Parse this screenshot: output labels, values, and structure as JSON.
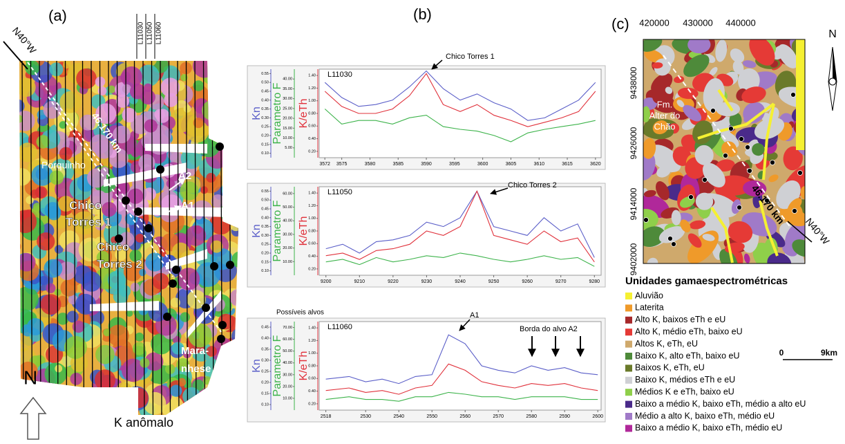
{
  "panel_a": {
    "label": "(a)",
    "direction": "N40°W",
    "lines": [
      "L11030",
      "L11050",
      "L11060"
    ],
    "distance": "46.170 km",
    "places": [
      "Porquinho",
      "A2",
      "A1",
      "Chico",
      "Torres 1",
      "Chico",
      "Torres 2",
      "Mara-",
      "nhese"
    ],
    "caption": "K anômalo",
    "north": "N"
  },
  "panel_b": {
    "label": "(b)"
  },
  "chart_data": [
    {
      "type": "line",
      "title": "L11030",
      "annotations": [
        "Chico Torres 1"
      ],
      "x": [
        3572,
        3575,
        3578,
        3581,
        3584,
        3587,
        3590,
        3593,
        3596,
        3599,
        3602,
        3605,
        3608,
        3611,
        3614,
        3617,
        3620
      ],
      "xlim": [
        3571,
        3621
      ],
      "xticks": [
        3572,
        3575,
        3580,
        3585,
        3590,
        3595,
        3600,
        3605,
        3610,
        3615,
        3620
      ],
      "ylim": [
        0.1,
        1.5
      ],
      "yticks": [
        {
          "value": 0.2,
          "label": "0.20"
        },
        {
          "value": 0.4,
          "label": "0.40"
        },
        {
          "value": 0.6,
          "label": "0.60"
        },
        {
          "value": 0.8,
          "label": "0.80"
        },
        {
          "value": 1,
          "label": "1.00"
        },
        {
          "value": 1.2,
          "label": "1.20"
        },
        {
          "value": 1.4,
          "label": "1.40"
        }
      ],
      "y2lim": [
        0,
        45
      ],
      "y2ticks": [
        {
          "value": 5,
          "label": "5.00"
        },
        {
          "value": 10,
          "label": "10.00"
        },
        {
          "value": 15,
          "label": "15.00"
        },
        {
          "value": 20,
          "label": "20.00"
        },
        {
          "value": 25,
          "label": "25.00"
        },
        {
          "value": 30,
          "label": "30.00"
        },
        {
          "value": 35,
          "label": "35.00"
        },
        {
          "value": 40,
          "label": "40.00"
        }
      ],
      "y3lim": [
        0.075,
        0.575
      ],
      "y3ticks": [
        {
          "value": 0.1,
          "label": "0.10"
        },
        0.15,
        {
          "value": 0.2,
          "label": "0.20"
        },
        0.25,
        {
          "value": 0.3,
          "label": "0.30"
        },
        0.35,
        {
          "value": 0.4,
          "label": "0.40"
        },
        0.45,
        {
          "value": 0.5,
          "label": "0.50"
        },
        0.55
      ],
      "series": [
        {
          "name": "Kn",
          "color": "#5a5ec8",
          "axis": "y3",
          "values": [
            0.5,
            0.415,
            0.365,
            0.375,
            0.4,
            0.475,
            0.565,
            0.465,
            0.4,
            0.435,
            0.385,
            0.35,
            0.285,
            0.3,
            0.35,
            0.4,
            0.5
          ]
        },
        {
          "name": "Parametro F",
          "color": "#3cb34a",
          "axis": "y2",
          "values": [
            24.8,
            17.1,
            18.9,
            18.9,
            17.1,
            20.3,
            21.6,
            15.8,
            14.4,
            13.5,
            11.3,
            8.1,
            12.6,
            14.4,
            15.8,
            17.1,
            18.9
          ]
        },
        {
          "name": "K/eTh",
          "color": "#e0303a",
          "axis": "y",
          "values": [
            1.15,
            0.91,
            0.8,
            0.8,
            0.87,
            1.08,
            1.43,
            0.94,
            0.83,
            0.94,
            0.77,
            0.69,
            0.59,
            0.66,
            0.73,
            0.83,
            1.15
          ]
        }
      ]
    },
    {
      "type": "line",
      "title": "L11050",
      "annotations": [
        "Chico Torres 2"
      ],
      "x": [
        9200,
        9205,
        9210,
        9215,
        9220,
        9225,
        9230,
        9235,
        9240,
        9245,
        9250,
        9255,
        9260,
        9265,
        9270,
        9275,
        9280
      ],
      "xlim": [
        9198,
        9282
      ],
      "xticks": [
        9200,
        9210,
        9220,
        9230,
        9240,
        9250,
        9260,
        9270,
        9280
      ],
      "ylim": [
        0.1,
        1.5
      ],
      "yticks": [
        {
          "value": 0.2,
          "label": "0.20"
        },
        {
          "value": 0.4,
          "label": "0.40"
        },
        {
          "value": 0.6,
          "label": "0.60"
        },
        {
          "value": 0.8,
          "label": "0.80"
        },
        {
          "value": 1,
          "label": "1.00"
        },
        {
          "value": 1.2,
          "label": "1.20"
        },
        {
          "value": 1.4,
          "label": "1.40"
        }
      ],
      "y2lim": [
        0,
        65
      ],
      "y2ticks": [
        {
          "value": 10,
          "label": "10.00"
        },
        {
          "value": 20,
          "label": "20.00"
        },
        {
          "value": 30,
          "label": "30.00"
        },
        {
          "value": 40,
          "label": "40.00"
        },
        {
          "value": 50,
          "label": "50.00"
        },
        {
          "value": 60,
          "label": "60.00"
        }
      ],
      "y3lim": [
        0.075,
        0.575
      ],
      "y3ticks": [
        {
          "value": 0.1,
          "label": "0.10"
        },
        0.15,
        {
          "value": 0.2,
          "label": "0.20"
        },
        0.25,
        {
          "value": 0.3,
          "label": "0.30"
        },
        0.35,
        {
          "value": 0.4,
          "label": "0.40"
        },
        0.45,
        {
          "value": 0.5,
          "label": "0.50"
        },
        0.55
      ],
      "series": [
        {
          "name": "Kn",
          "color": "#5a5ec8",
          "axis": "y3",
          "values": [
            0.225,
            0.25,
            0.2,
            0.265,
            0.275,
            0.3,
            0.375,
            0.35,
            0.4,
            0.55,
            0.35,
            0.325,
            0.3,
            0.4,
            0.325,
            0.365,
            0.175
          ]
        },
        {
          "name": "Parametro F",
          "color": "#3cb34a",
          "axis": "y2",
          "values": [
            9.8,
            11.7,
            7.8,
            13.0,
            9.8,
            11.7,
            14.3,
            13.0,
            16.3,
            14.3,
            11.7,
            9.8,
            11.7,
            14.3,
            11.7,
            13.0,
            6.5
          ]
        },
        {
          "name": "K/eTh",
          "color": "#e0303a",
          "axis": "y",
          "values": [
            0.41,
            0.45,
            0.35,
            0.49,
            0.52,
            0.59,
            0.8,
            0.73,
            0.87,
            1.43,
            0.73,
            0.66,
            0.59,
            0.8,
            0.63,
            0.69,
            0.31
          ]
        }
      ]
    },
    {
      "type": "line",
      "title": "L11060",
      "subtitle": "Possíveis alvos",
      "annotations": [
        "A1",
        "Borda do alvo A2"
      ],
      "x": [
        2518,
        2525,
        2530,
        2535,
        2540,
        2545,
        2550,
        2555,
        2560,
        2565,
        2570,
        2575,
        2580,
        2585,
        2590,
        2595,
        2600
      ],
      "xlim": [
        2516,
        2601
      ],
      "xticks": [
        2518,
        2530,
        2540,
        2550,
        2560,
        2570,
        2580,
        2590,
        2600
      ],
      "ylim": [
        0.1,
        1.5
      ],
      "yticks": [
        {
          "value": 0.2,
          "label": "0.20"
        },
        {
          "value": 0.4,
          "label": "0.40"
        },
        {
          "value": 0.6,
          "label": "0.60"
        },
        {
          "value": 0.8,
          "label": "0.80"
        },
        {
          "value": 1,
          "label": "1.00"
        },
        {
          "value": 1.2,
          "label": "1.20"
        },
        {
          "value": 1.4,
          "label": "1.40"
        }
      ],
      "y2lim": [
        0,
        75
      ],
      "y2ticks": [
        {
          "value": 10,
          "label": "10.00"
        },
        {
          "value": 20,
          "label": "20.00"
        },
        {
          "value": 30,
          "label": "30.00"
        },
        {
          "value": 40,
          "label": "40.00"
        },
        {
          "value": 50,
          "label": "50.00"
        },
        {
          "value": 60,
          "label": "60.00"
        },
        {
          "value": 70,
          "label": "70.00"
        }
      ],
      "y3lim": [
        0.075,
        0.475
      ],
      "y3ticks": [
        {
          "value": 0.1,
          "label": "0.10"
        },
        0.15,
        {
          "value": 0.2,
          "label": "0.20"
        },
        0.25,
        {
          "value": 0.3,
          "label": "0.30"
        },
        0.35,
        {
          "value": 0.4,
          "label": "0.40"
        },
        0.45
      ],
      "series": [
        {
          "name": "Kn",
          "color": "#5a5ec8",
          "axis": "y3",
          "values": [
            0.215,
            0.227,
            0.203,
            0.215,
            0.195,
            0.227,
            0.235,
            0.415,
            0.375,
            0.275,
            0.255,
            0.243,
            0.275,
            0.255,
            0.267,
            0.243,
            0.235
          ]
        },
        {
          "name": "Parametro F",
          "color": "#3cb34a",
          "axis": "y2",
          "values": [
            9,
            11.3,
            9,
            9,
            7.5,
            11.3,
            11.3,
            15,
            13.5,
            11.3,
            11.3,
            9,
            11.3,
            11.3,
            11.3,
            9,
            9
          ]
        },
        {
          "name": "K/eTh",
          "color": "#e0303a",
          "axis": "y",
          "values": [
            0.41,
            0.45,
            0.38,
            0.41,
            0.35,
            0.45,
            0.49,
            0.83,
            0.73,
            0.55,
            0.49,
            0.45,
            0.52,
            0.49,
            0.52,
            0.45,
            0.41
          ]
        }
      ]
    }
  ],
  "panel_c": {
    "label": "(c)",
    "xticks": [
      420000,
      430000,
      440000
    ],
    "yticks": [
      9438000,
      9426000,
      9414000,
      9402000
    ],
    "unit_lines": [
      "Fm.",
      "Alter do",
      "Chão"
    ],
    "distance": "46.170 km",
    "direction": "N40°W",
    "north": "N",
    "scale": [
      "0",
      "9km"
    ],
    "legend": {
      "title": "Unidades gamaespectrométricas",
      "items": [
        {
          "label": "Aluvião",
          "color": "#f5f032"
        },
        {
          "label": "Laterita",
          "color": "#ef9a2a"
        },
        {
          "label": "Alto K, baixos eTh e eU",
          "color": "#a6282a"
        },
        {
          "label": "Alto K, médio eTh, baixo eU",
          "color": "#e53a36"
        },
        {
          "label": "Altos K, eTh, eU",
          "color": "#cfa96c"
        },
        {
          "label": "Baixo K, alto eTh, baixo eU",
          "color": "#4e8a3a"
        },
        {
          "label": "Baixos K, eTh, eU",
          "color": "#6a7a2a"
        },
        {
          "label": "Baixo K, médios eTh e eU",
          "color": "#cfd0d4"
        },
        {
          "label": "Médios K e eTh, baixo eU",
          "color": "#8fcf4a"
        },
        {
          "label": "Baixo a médio K, baixo eTh, médio a alto eU",
          "color": "#4a2a8a"
        },
        {
          "label": "Médio a alto K, baixo eTh, médio eU",
          "color": "#a07ac8"
        },
        {
          "label": "Baixo a médio K, baixo eTh, médio eU",
          "color": "#b0289a"
        }
      ]
    }
  }
}
